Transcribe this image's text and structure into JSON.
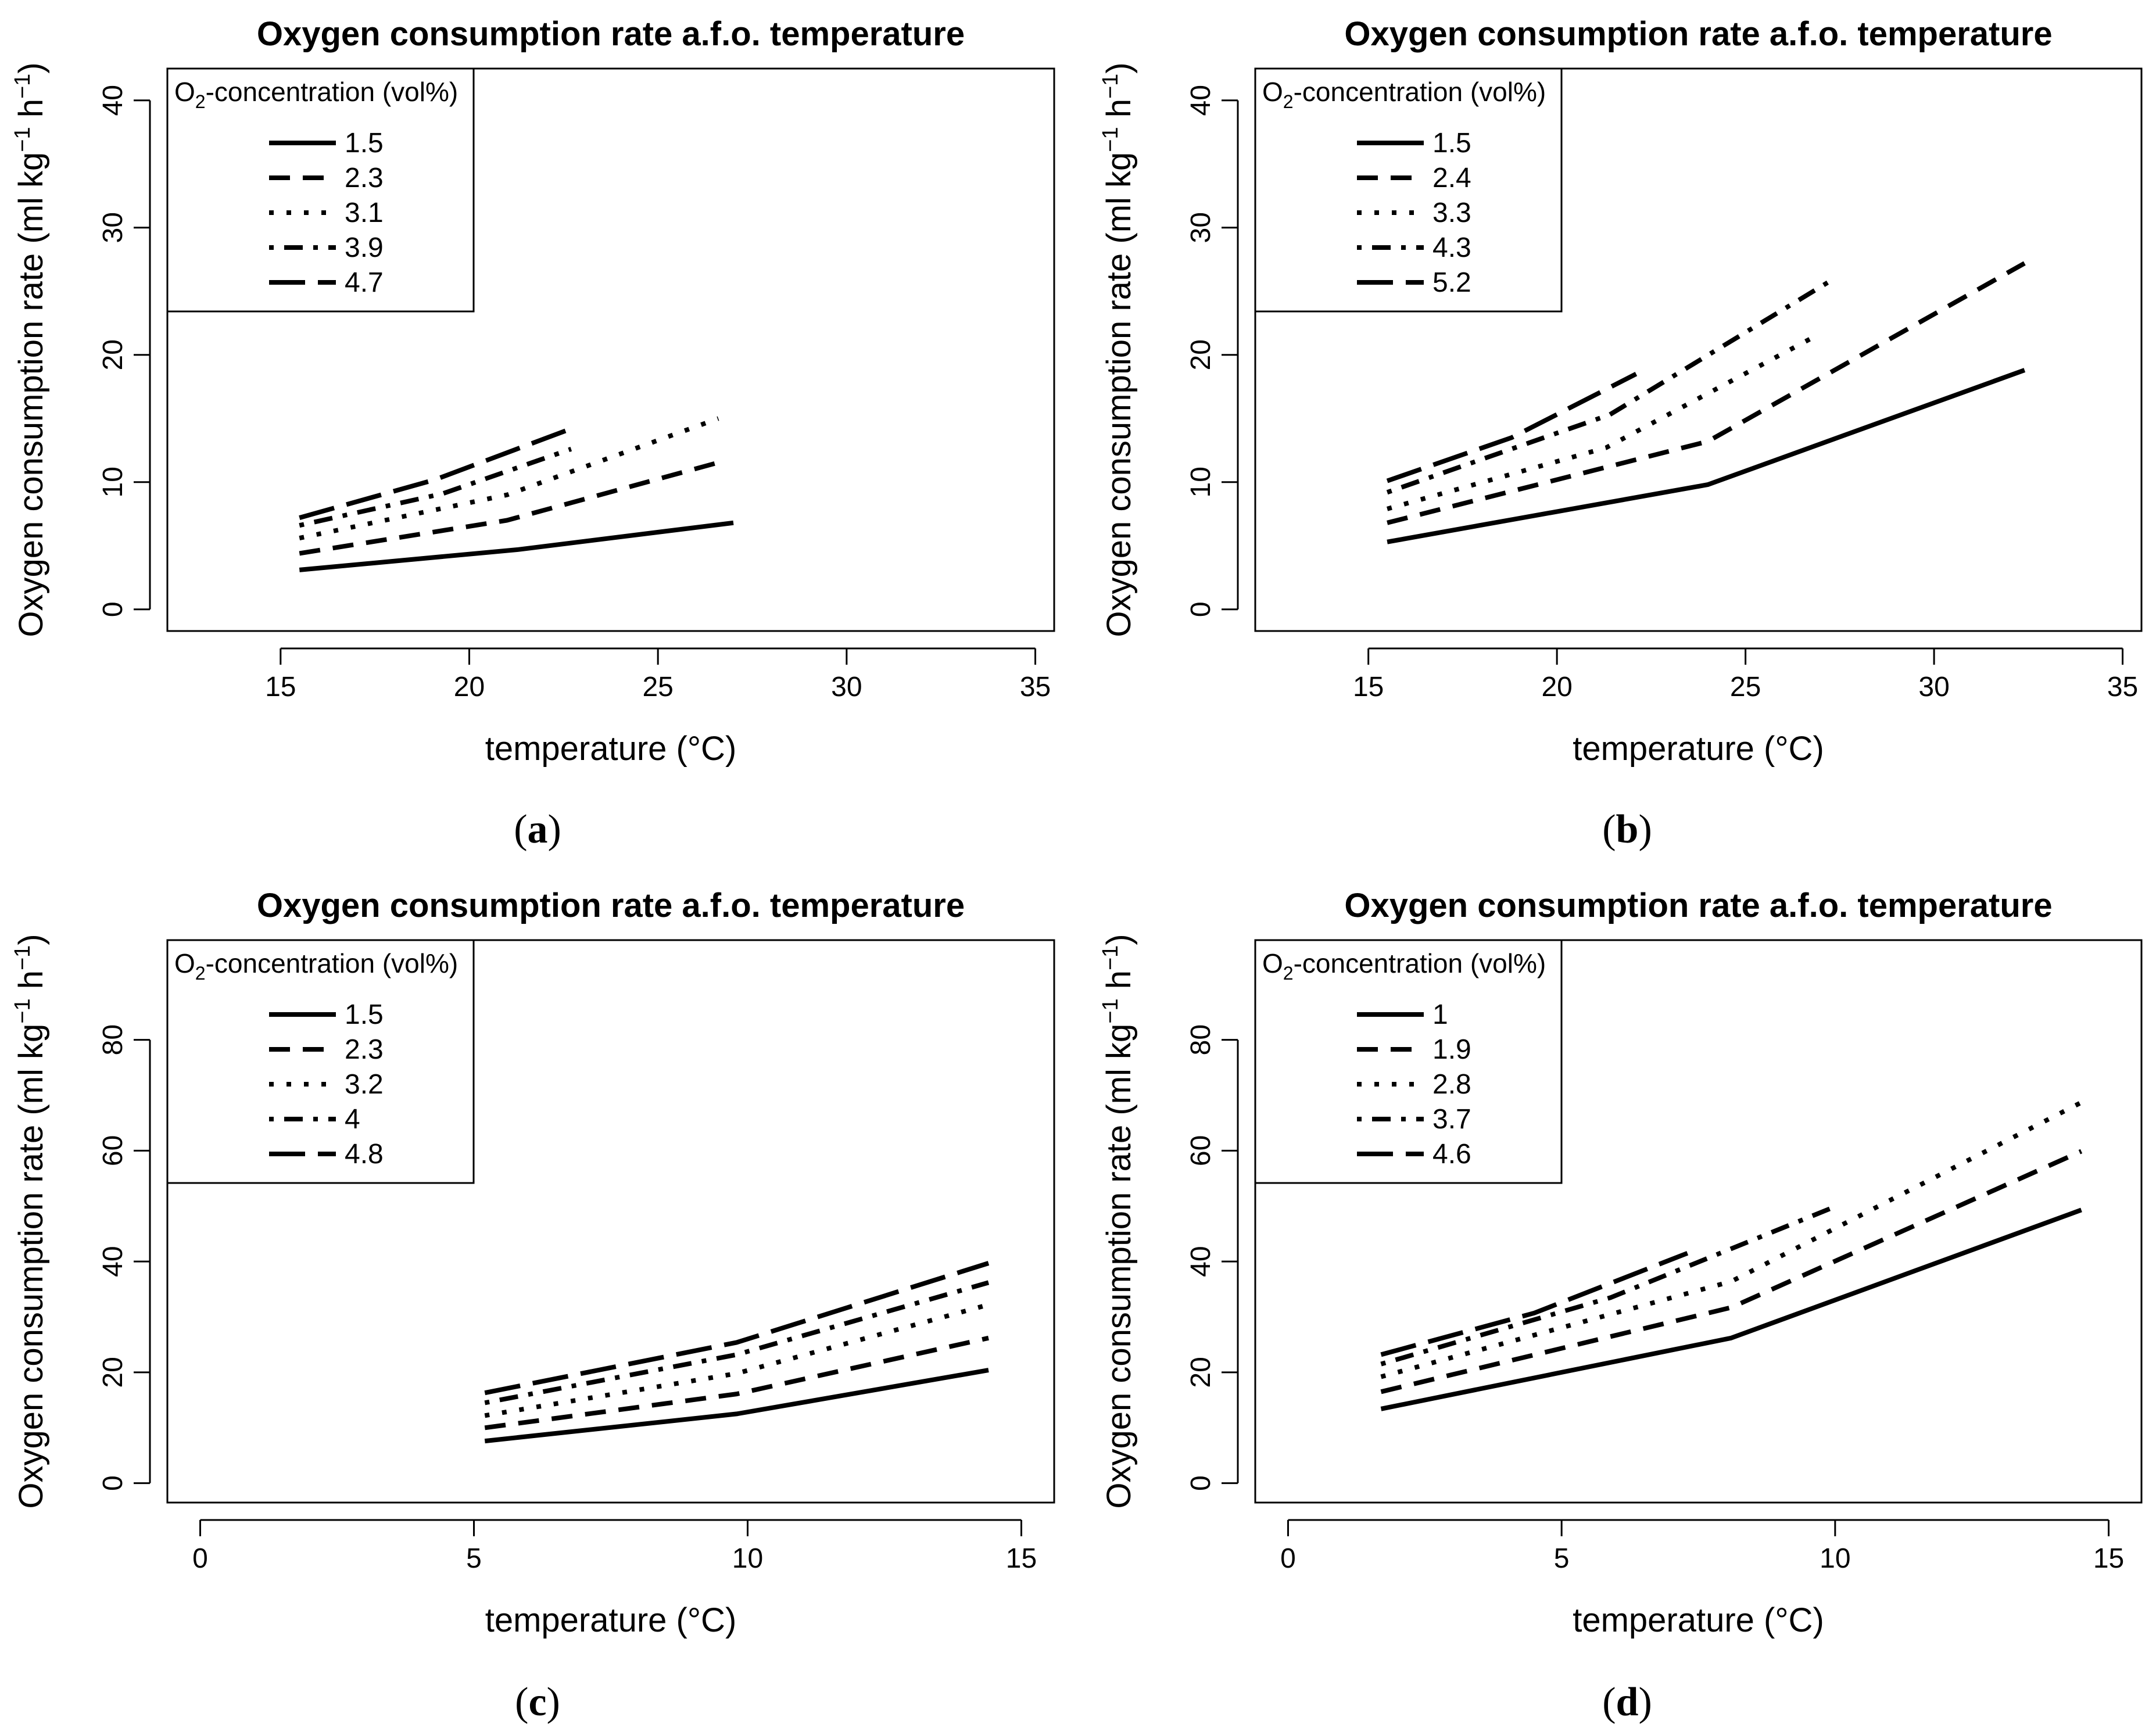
{
  "chart_data": [
    {
      "type": "line",
      "panel": "a",
      "title": "Oxygen consumption rate a.f.o. temperature",
      "xlabel": "temperature (°C)",
      "ylabel_main": "Oxygen consumption rate (ml kg",
      "ylabel_sup1": "−1",
      "ylabel_mid": " h",
      "ylabel_sup2": "−1",
      "ylabel_end": ")",
      "xlim": [
        12,
        35.5
      ],
      "ylim": [
        -1.7,
        42.5
      ],
      "xticks": [
        15,
        20,
        25,
        30,
        35
      ],
      "yticks": [
        0,
        10,
        20,
        30,
        40
      ],
      "legend_title_pre": "O",
      "legend_title_sub": "2",
      "legend_title_post": "-concentration (vol%)",
      "series": [
        {
          "name": "1.5",
          "style": "solid",
          "x": [
            15.5,
            21.3,
            27.0
          ],
          "y": [
            3.1,
            4.7,
            6.8
          ]
        },
        {
          "name": "2.3",
          "style": "dashed",
          "x": [
            15.5,
            21.0,
            26.8
          ],
          "y": [
            4.4,
            7.0,
            11.7
          ]
        },
        {
          "name": "3.1",
          "style": "dotted",
          "x": [
            15.5,
            21.0,
            26.6
          ],
          "y": [
            5.6,
            9.0,
            15.0
          ]
        },
        {
          "name": "3.9",
          "style": "dotdash",
          "x": [
            15.5,
            19.3,
            22.7
          ],
          "y": [
            6.6,
            9.1,
            12.6
          ]
        },
        {
          "name": "4.7",
          "style": "longdash",
          "x": [
            15.5,
            19.1,
            22.7
          ],
          "y": [
            7.2,
            10.2,
            14.2
          ]
        }
      ]
    },
    {
      "type": "line",
      "panel": "b",
      "title": "Oxygen consumption rate a.f.o. temperature",
      "xlabel": "temperature (°C)",
      "ylabel_main": "Oxygen consumption rate (ml kg",
      "ylabel_sup1": "−1",
      "ylabel_mid": " h",
      "ylabel_sup2": "−1",
      "ylabel_end": ")",
      "xlim": [
        12,
        35.5
      ],
      "ylim": [
        -1.7,
        42.5
      ],
      "xticks": [
        15,
        20,
        25,
        30,
        35
      ],
      "yticks": [
        0,
        10,
        20,
        30,
        40
      ],
      "legend_title_pre": "O",
      "legend_title_sub": "2",
      "legend_title_post": "-concentration (vol%)",
      "series": [
        {
          "name": "1.5",
          "style": "solid",
          "x": [
            15.5,
            24.0,
            32.4
          ],
          "y": [
            5.3,
            9.8,
            18.8
          ]
        },
        {
          "name": "2.4",
          "style": "dashed",
          "x": [
            15.5,
            24.0,
            32.4
          ],
          "y": [
            6.8,
            13.2,
            27.2
          ]
        },
        {
          "name": "3.3",
          "style": "dotted",
          "x": [
            15.5,
            21.3,
            27.0
          ],
          "y": [
            7.9,
            12.7,
            21.7
          ]
        },
        {
          "name": "4.3",
          "style": "dotdash",
          "x": [
            15.5,
            21.4,
            27.3
          ],
          "y": [
            9.2,
            15.3,
            25.9
          ]
        },
        {
          "name": "5.2",
          "style": "longdash",
          "x": [
            15.5,
            18.8,
            22.1
          ],
          "y": [
            10.1,
            13.5,
            18.5
          ]
        }
      ]
    },
    {
      "type": "line",
      "panel": "c",
      "title": "Oxygen consumption rate a.f.o. temperature",
      "xlabel": "temperature (°C)",
      "ylabel_main": "Oxygen consumption rate (ml kg",
      "ylabel_sup1": "−1",
      "ylabel_mid": " h",
      "ylabel_sup2": "−1",
      "ylabel_end": ")",
      "xlim": [
        -0.6,
        15.6
      ],
      "ylim": [
        -3.5,
        98
      ],
      "xticks": [
        0,
        5,
        10,
        15
      ],
      "yticks": [
        0,
        20,
        40,
        60,
        80
      ],
      "legend_title_pre": "O",
      "legend_title_sub": "2",
      "legend_title_post": "-concentration (vol%)",
      "series": [
        {
          "name": "1.5",
          "style": "solid",
          "x": [
            5.2,
            9.8,
            14.4
          ],
          "y": [
            7.6,
            12.5,
            20.4
          ]
        },
        {
          "name": "2.3",
          "style": "dashed",
          "x": [
            5.2,
            9.8,
            14.4
          ],
          "y": [
            10.0,
            16.1,
            26.2
          ]
        },
        {
          "name": "3.2",
          "style": "dotted",
          "x": [
            5.2,
            9.8,
            14.4
          ],
          "y": [
            12.2,
            19.8,
            32.2
          ]
        },
        {
          "name": "4",
          "style": "dotdash",
          "x": [
            5.2,
            9.8,
            14.4
          ],
          "y": [
            14.5,
            23.2,
            36.2
          ]
        },
        {
          "name": "4.8",
          "style": "longdash",
          "x": [
            5.2,
            9.8,
            14.4
          ],
          "y": [
            16.3,
            25.4,
            39.7
          ]
        }
      ]
    },
    {
      "type": "line",
      "panel": "d",
      "title": "Oxygen consumption rate a.f.o. temperature",
      "xlabel": "temperature (°C)",
      "ylabel_main": "Oxygen consumption rate (ml kg",
      "ylabel_sup1": "−1",
      "ylabel_mid": " h",
      "ylabel_sup2": "−1",
      "ylabel_end": ")",
      "xlim": [
        -0.6,
        15.6
      ],
      "ylim": [
        -3.5,
        98
      ],
      "xticks": [
        0,
        5,
        10,
        15
      ],
      "yticks": [
        0,
        20,
        40,
        60,
        80
      ],
      "legend_title_pre": "O",
      "legend_title_sub": "2",
      "legend_title_post": "-concentration (vol%)",
      "series": [
        {
          "name": "1",
          "style": "solid",
          "x": [
            1.7,
            8.1,
            14.5
          ],
          "y": [
            13.4,
            26.2,
            49.3
          ]
        },
        {
          "name": "1.9",
          "style": "dashed",
          "x": [
            1.7,
            8.1,
            14.5
          ],
          "y": [
            16.5,
            31.7,
            59.9
          ]
        },
        {
          "name": "2.8",
          "style": "dotted",
          "x": [
            1.7,
            8.1,
            14.5
          ],
          "y": [
            19.2,
            36.4,
            68.7
          ]
        },
        {
          "name": "3.7",
          "style": "dotdash",
          "x": [
            1.7,
            5.9,
            10.0
          ],
          "y": [
            21.5,
            33.5,
            49.9
          ]
        },
        {
          "name": "4.6",
          "style": "longdash",
          "x": [
            1.7,
            4.5,
            7.3
          ],
          "y": [
            23.2,
            30.7,
            41.5
          ]
        }
      ]
    }
  ],
  "captions": [
    {
      "open": "(",
      "letter": "a",
      "close": ")"
    },
    {
      "open": "(",
      "letter": "b",
      "close": ")"
    },
    {
      "open": "(",
      "letter": "c",
      "close": ")"
    },
    {
      "open": "(",
      "letter": "d",
      "close": ")"
    }
  ],
  "colors": {
    "line": "#000000",
    "background": "#ffffff"
  }
}
